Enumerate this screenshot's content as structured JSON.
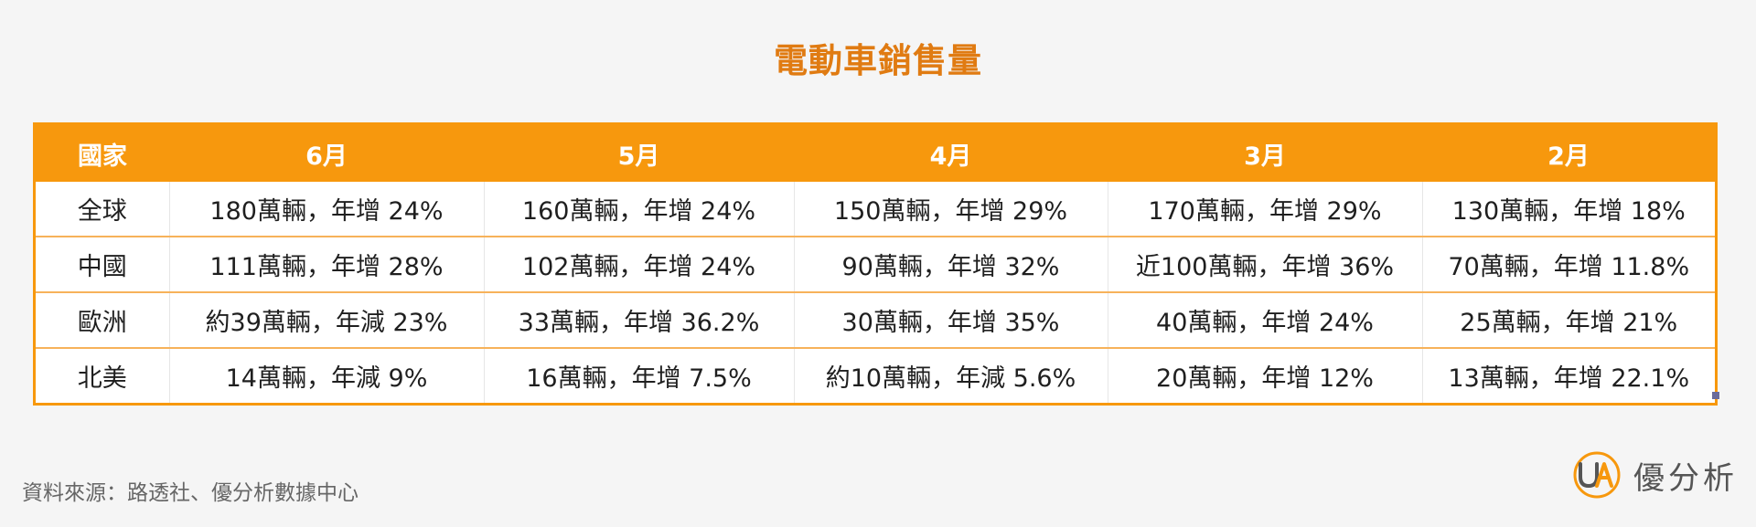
{
  "title": "電動車銷售量",
  "source": "資料來源：路透社、優分析數據中心",
  "logo": {
    "icon": "ua-logo-icon",
    "text": "優分析"
  },
  "colors": {
    "accent": "#f7980d",
    "title": "#e07b12"
  },
  "chart_data": {
    "type": "table",
    "title": "電動車銷售量",
    "columns": [
      "國家",
      "6月",
      "5月",
      "4月",
      "3月",
      "2月"
    ],
    "rows": [
      [
        "全球",
        "180萬輛，年增 24%",
        "160萬輛，年增 24%",
        "150萬輛，年增 29%",
        "170萬輛，年增 29%",
        "130萬輛，年增 18%"
      ],
      [
        "中國",
        "111萬輛，年增 28%",
        "102萬輛，年增 24%",
        "90萬輛，年增 32%",
        "近100萬輛，年增 36%",
        "70萬輛，年增 11.8%"
      ],
      [
        "歐洲",
        "約39萬輛，年減 23%",
        "33萬輛，年增 36.2%",
        "30萬輛，年增 35%",
        "40萬輛，年增 24%",
        "25萬輛，年增 21%"
      ],
      [
        "北美",
        "14萬輛，年減 9%",
        "16萬輛，年增 7.5%",
        "約10萬輛，年減 5.6%",
        "20萬輛，年增 12%",
        "13萬輛，年增 22.1%"
      ]
    ]
  }
}
